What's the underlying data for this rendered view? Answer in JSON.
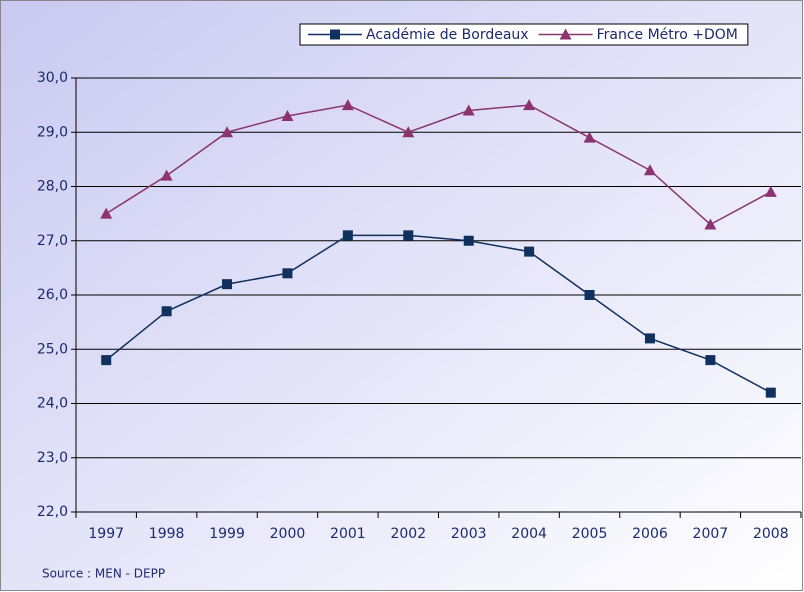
{
  "chart_data": {
    "type": "line",
    "categories": [
      "1997",
      "1998",
      "1999",
      "2000",
      "2001",
      "2002",
      "2003",
      "2004",
      "2005",
      "2006",
      "2007",
      "2008"
    ],
    "series": [
      {
        "name": "Académie de Bordeaux",
        "color": "#10305e",
        "marker": "square",
        "values": [
          24.8,
          25.7,
          26.2,
          26.4,
          27.1,
          27.1,
          27.0,
          26.8,
          26.0,
          25.2,
          24.8,
          24.2
        ]
      },
      {
        "name": "France Métro +DOM",
        "color": "#8b3470",
        "marker": "triangle",
        "values": [
          27.5,
          28.2,
          29.0,
          29.3,
          29.5,
          29.0,
          29.4,
          29.5,
          28.9,
          28.3,
          27.3,
          27.9
        ]
      }
    ],
    "ylim": [
      22,
      30
    ],
    "yticks": [
      {
        "value": 22,
        "label": "22,0"
      },
      {
        "value": 23,
        "label": "23,0"
      },
      {
        "value": 24,
        "label": "24,0"
      },
      {
        "value": 25,
        "label": "25,0"
      },
      {
        "value": 26,
        "label": "26,0"
      },
      {
        "value": 27,
        "label": "27,0"
      },
      {
        "value": 28,
        "label": "28,0"
      },
      {
        "value": 29,
        "label": "29,0"
      },
      {
        "value": 30,
        "label": "30,0"
      }
    ],
    "grid": true,
    "legend": "top-right",
    "source": "Source : MEN - DEPP"
  }
}
